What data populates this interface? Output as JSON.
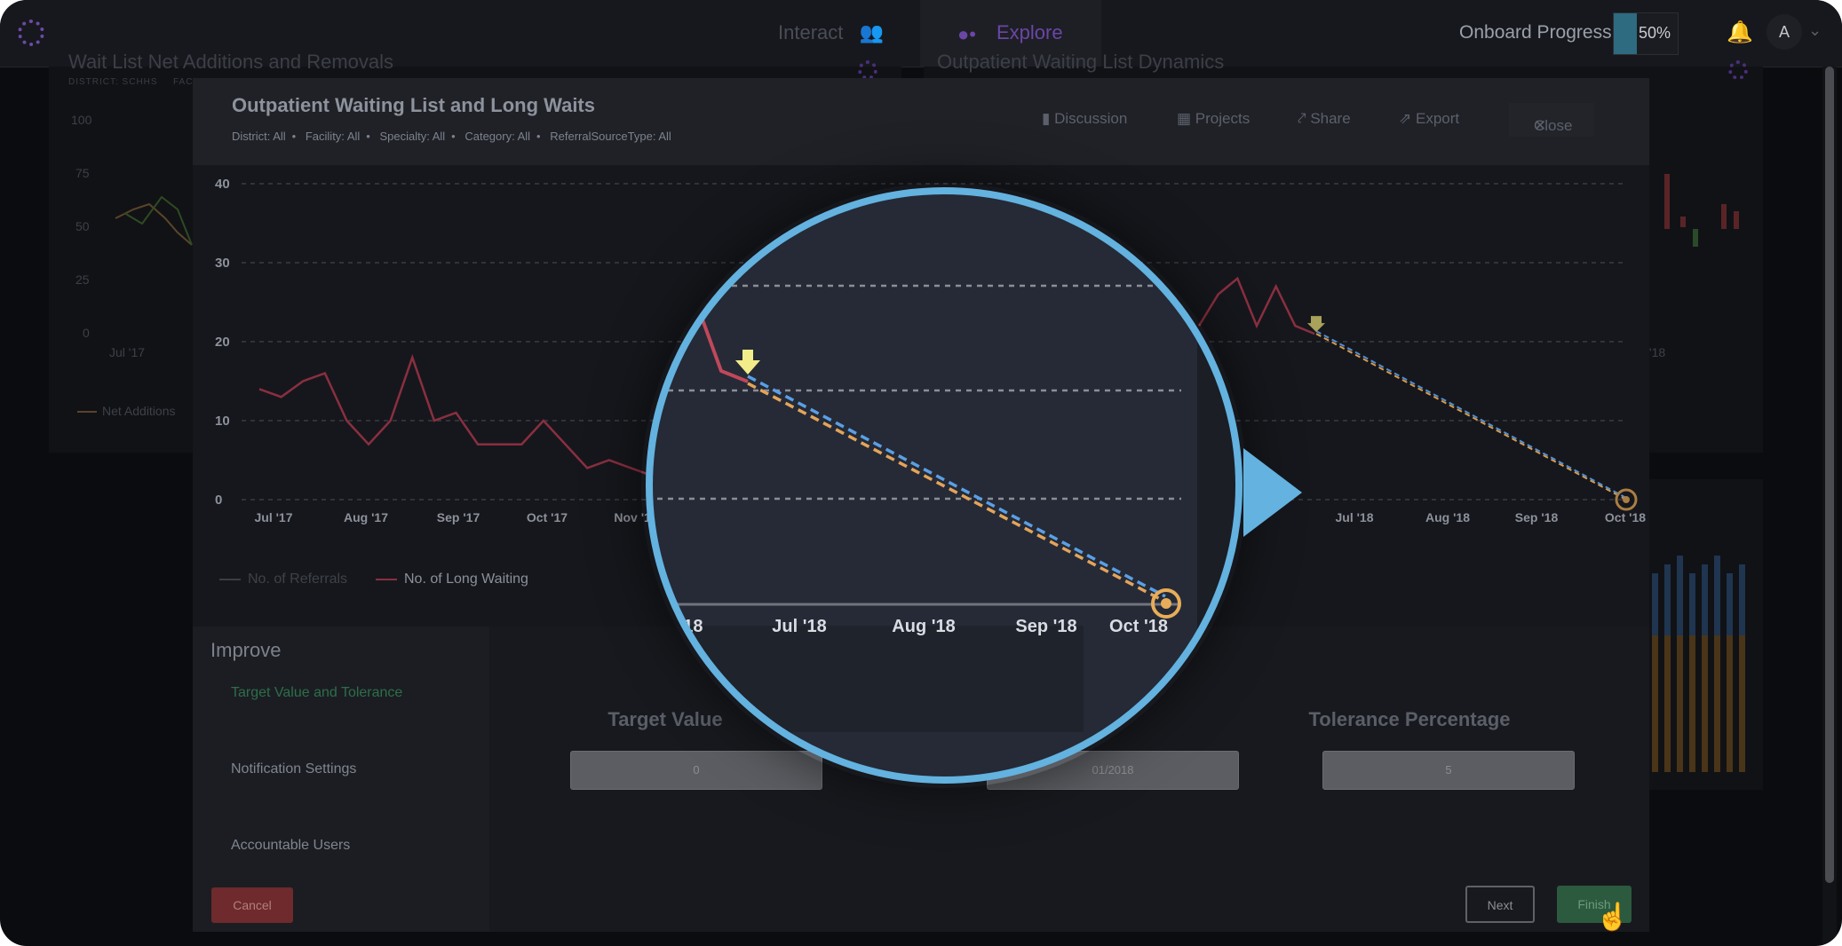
{
  "topbar": {
    "tab_interact": "Interact",
    "tab_explore": "Explore",
    "onboard_label": "Onboard Progress",
    "progress_value": 50,
    "progress_text": "50%",
    "avatar_initial": "A",
    "icons": [
      "app-logo-icon",
      "people-icon",
      "explore-icon",
      "bell-icon",
      "chevron-down-icon"
    ],
    "accent_color": "#6b46a6"
  },
  "background": {
    "left_card_title": "Wait List Net Additions and Removals",
    "left_card_sub": "DISTRICT: SCHHS",
    "left_card_sub2": "FAC",
    "left_y_ticks": [
      "100",
      "75",
      "50",
      "25",
      "0"
    ],
    "left_x_tick": "Jul '17",
    "left_legend": "Net Additions",
    "right_card_title": "Outpatient Waiting List Dynamics",
    "right_x_tick": "y '18"
  },
  "modal": {
    "title": "Outpatient Waiting List and Long Waits",
    "filters": [
      "District: All",
      "Facility: All",
      "Specialty: All",
      "Category: All",
      "ReferralSourceType: All"
    ],
    "header_buttons": {
      "discussion": "Discussion",
      "projects": "Projects",
      "share": "Share",
      "export": "Export",
      "close": "Close"
    },
    "legend": {
      "referrals": "No. of Referrals",
      "long_waiting": "No. of Long Waiting"
    },
    "improve": {
      "title": "Improve",
      "steps": [
        "Target Value and Tolerance",
        "Notification Settings",
        "Accountable Users"
      ],
      "active_step": 0,
      "target_label": "Target Value",
      "target_value": "0",
      "date_value": "01/2018",
      "tolerance_label": "Tolerance Percentage",
      "tolerance_value": "5"
    },
    "buttons": {
      "cancel": "Cancel",
      "next": "Next",
      "finish": "Finish"
    }
  },
  "chart_data": {
    "type": "line",
    "y_ticks": [
      "40",
      "30",
      "20",
      "10",
      "0"
    ],
    "x_ticks": [
      "Jul '17",
      "Aug '17",
      "Sep '17",
      "Oct '17",
      "Nov '17",
      "Jul '18",
      "Aug '18",
      "Sep '18",
      "Oct '18"
    ],
    "ylim": [
      0,
      40
    ],
    "grid": true,
    "colors": {
      "long_waiting": "#8a2f40",
      "target_line_blue": "#4f8fd6",
      "target_line_orange": "#d89a4a",
      "marker": "#e6d36a",
      "target": "#d8a455"
    },
    "series": [
      {
        "name": "No. of Long Waiting",
        "values": [
          14,
          13,
          15,
          16,
          10,
          7,
          10,
          18,
          10,
          11,
          7,
          7,
          7,
          10,
          7,
          4,
          5,
          4,
          3
        ]
      }
    ],
    "visible_right_segment": [
      22,
      26,
      28,
      22,
      27,
      22,
      21
    ],
    "projection": {
      "start_value": 21,
      "end_label": "Oct '18",
      "end_value": 0
    }
  },
  "magnifier": {
    "x_ticks": [
      "'18",
      "Jul '18",
      "Aug '18",
      "Sep '18",
      "Oct '18"
    ],
    "ring_color": "#63b2e0"
  }
}
